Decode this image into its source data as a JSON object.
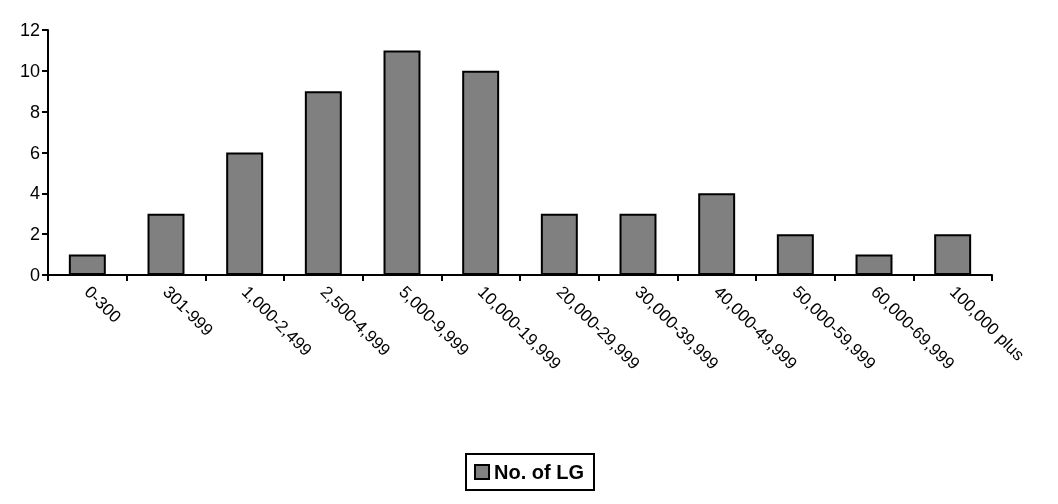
{
  "chart_data": {
    "type": "bar",
    "categories": [
      "0-300",
      "301-999",
      "1,000-2,499",
      "2,500-4,999",
      "5,000-9,999",
      "10,000-19,999",
      "20,000-29,999",
      "30,000-39,999",
      "40,000-49,999",
      "50,000-59,999",
      "60,000-69,999",
      "100,000 plus"
    ],
    "series": [
      {
        "name": "No. of LG",
        "color": "#808080",
        "values": [
          1,
          3,
          6,
          9,
          11,
          10,
          3,
          3,
          4,
          2,
          1,
          2
        ]
      }
    ],
    "ylim": [
      0,
      12
    ],
    "yticks": [
      0,
      2,
      4,
      6,
      8,
      10,
      12
    ],
    "grid": false,
    "legend": "bottom"
  }
}
